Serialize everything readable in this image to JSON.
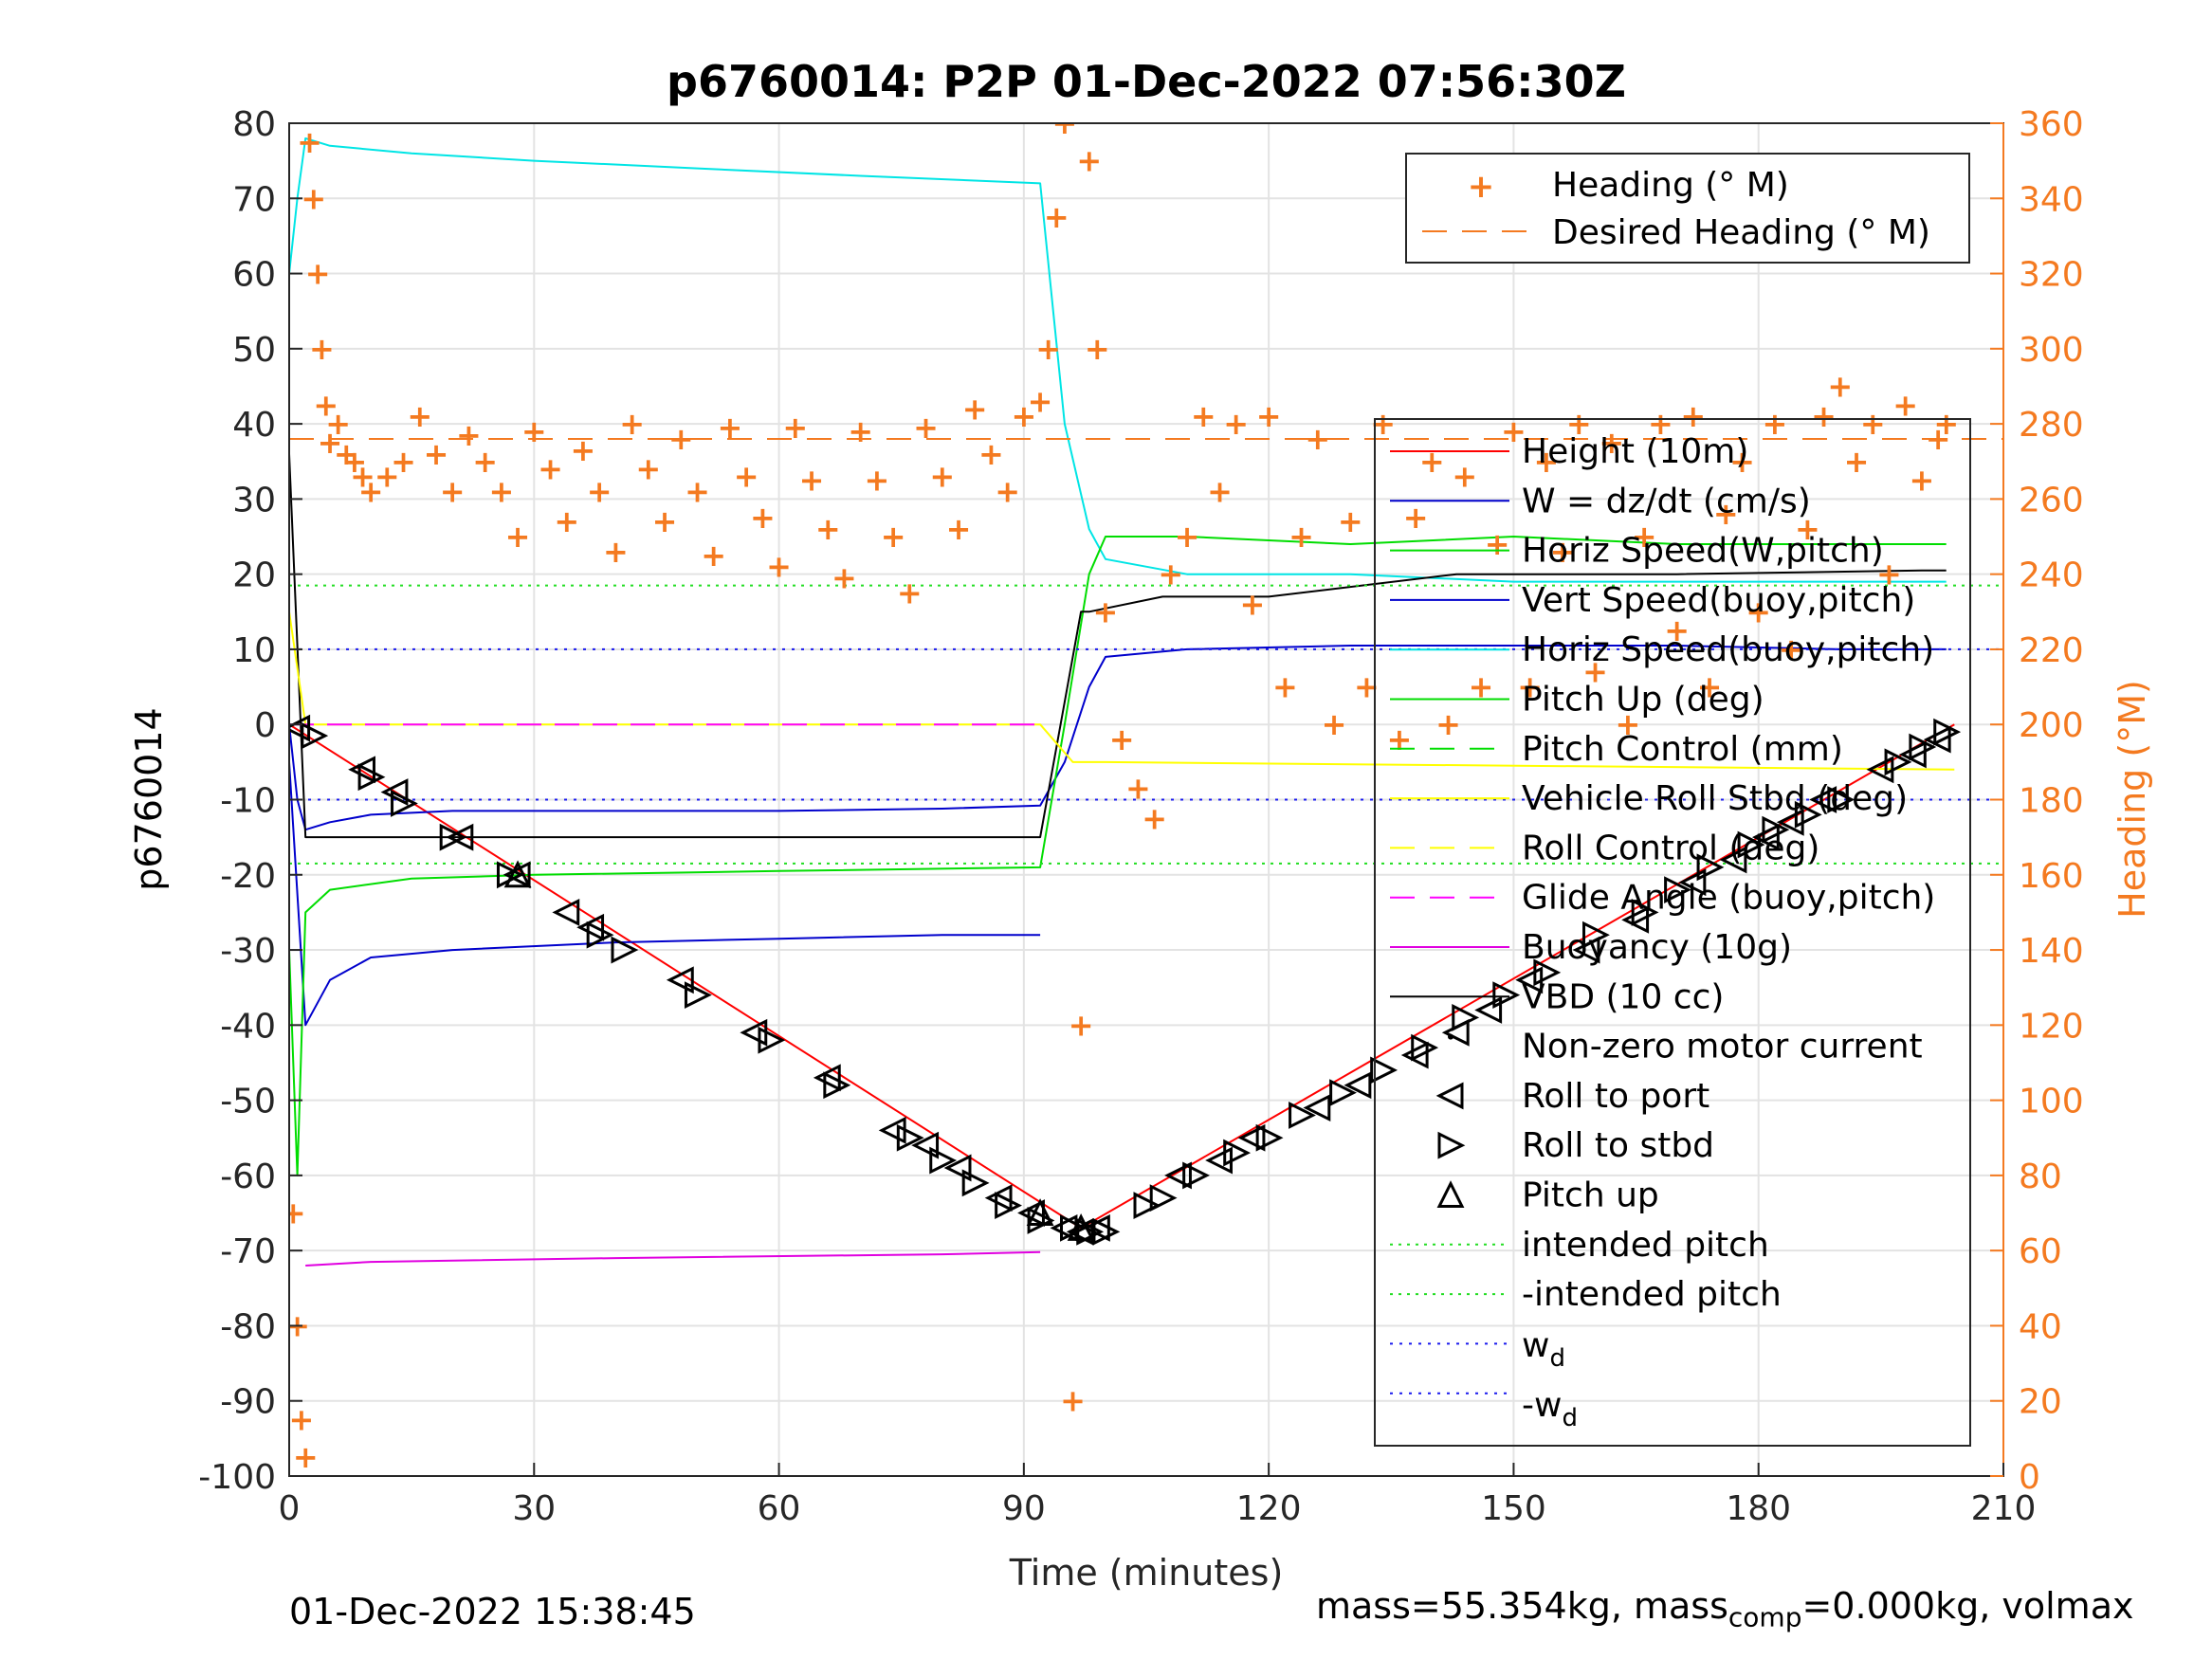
{
  "chart_data": {
    "type": "line",
    "title": "p6760014: P2P 01-Dec-2022 07:56:30Z",
    "xlabel": "Time (minutes)",
    "ylabel": "p6760014",
    "ylabel_right": "Heading (°M)",
    "xlim": [
      0,
      210
    ],
    "ylim": [
      -100,
      80
    ],
    "ylim_right": [
      0,
      360
    ],
    "x_ticks": [
      "0",
      "30",
      "60",
      "90",
      "120",
      "150",
      "180",
      "210"
    ],
    "y_ticks": [
      "80",
      "70",
      "60",
      "50",
      "40",
      "30",
      "20",
      "10",
      "0",
      "-10",
      "-20",
      "-30",
      "-40",
      "-50",
      "-60",
      "-70",
      "-80",
      "-90",
      "-100"
    ],
    "y_ticks_right": [
      "360",
      "340",
      "320",
      "300",
      "280",
      "260",
      "240",
      "220",
      "200",
      "180",
      "160",
      "140",
      "120",
      "100",
      "80",
      "60",
      "40",
      "20",
      "0"
    ],
    "grid": true,
    "legend_heading": {
      "placement": "top-right",
      "entries": [
        "Heading (° M)",
        "Desired Heading (° M)"
      ]
    },
    "legend_main": {
      "placement": "right",
      "entries": [
        "Height (10m)",
        "W = dz/dt (cm/s)",
        "Horiz Speed(W,pitch)",
        "Vert Speed(buoy,pitch)",
        "Horiz Speed(buoy,pitch)",
        "Pitch Up (deg)",
        "Pitch Control (mm)",
        "Vehicle Roll Stbd (deg)",
        "Roll Control (deg)",
        "Glide Angle (buoy,pitch)",
        "Buoyancy (10g)",
        "VBD (10 cc)",
        "Non-zero motor current",
        "Roll to port",
        "Roll to stbd",
        "Pitch up",
        "intended pitch",
        "-intended pitch"
      ],
      "subscript_entries": [
        {
          "base": "w",
          "sub": "d"
        },
        {
          "prefix": "-",
          "base": "w",
          "sub": "d"
        }
      ]
    },
    "colors": {
      "height": "#ff0000",
      "w": "#0000cc",
      "horiz_speed": "#00e5e5",
      "pitch": "#00dd00",
      "roll": "#ffff00",
      "glide": "#ff00ff",
      "buoyancy": "#e000e0",
      "vbd": "#000000",
      "heading": "#f47a20",
      "intended_pitch": "#22dd22",
      "wd": "#1a1aee"
    },
    "series": [
      {
        "name": "Height (10m)",
        "x": [
          0,
          97,
          204
        ],
        "y": [
          0,
          -67,
          0
        ]
      },
      {
        "name": "W = dz/dt (cm/s)",
        "x": [
          0,
          1,
          2,
          5,
          10,
          20,
          40,
          60,
          80,
          92,
          95,
          98,
          100,
          110,
          130,
          150,
          170,
          190,
          203
        ],
        "y": [
          0,
          -10,
          -14,
          -13,
          -12,
          -11.5,
          -11.5,
          -11.5,
          -11.2,
          -10.8,
          -5,
          5,
          9,
          10,
          10.5,
          10.5,
          10.5,
          10,
          10
        ]
      },
      {
        "name": "Horiz Speed(W,pitch)",
        "x": [
          0,
          1,
          2,
          5,
          15,
          30,
          50,
          70,
          92,
          95,
          98,
          100,
          110,
          130,
          150,
          170,
          190,
          203
        ],
        "y": [
          60,
          70,
          78,
          77,
          76,
          75,
          74,
          73,
          72,
          40,
          26,
          22,
          20,
          20,
          19,
          19,
          19,
          19
        ]
      },
      {
        "name": "Horiz Speed(buoy,pitch)",
        "x": [
          0,
          2,
          5,
          10,
          20,
          40,
          60,
          80,
          92
        ],
        "y": [
          -5,
          -40,
          -34,
          -31,
          -30,
          -29,
          -28.5,
          -28,
          -28
        ]
      },
      {
        "name": "Pitch Up (deg)",
        "x": [
          0,
          1,
          2,
          5,
          15,
          30,
          60,
          92,
          95,
          98,
          100,
          110,
          130,
          150,
          170,
          190,
          203
        ],
        "y": [
          -30,
          -60,
          -25,
          -22,
          -20.5,
          -20,
          -19.5,
          -19,
          0,
          20,
          25,
          25,
          24,
          25,
          24,
          24,
          24
        ]
      },
      {
        "name": "VBD (10 cc)",
        "x": [
          0,
          2,
          92,
          97,
          98,
          107,
          120,
          143,
          170,
          200,
          203
        ],
        "y": [
          36,
          -15,
          -15,
          15,
          15,
          17,
          17,
          20,
          20,
          20.5,
          20.5
        ]
      },
      {
        "name": "Buoyancy (10g)",
        "x": [
          2,
          10,
          40,
          80,
          92
        ],
        "y": [
          -72,
          -71.5,
          -71,
          -70.5,
          -70.2
        ]
      },
      {
        "name": "Vehicle Roll Stbd (deg)",
        "x": [
          0,
          2,
          4,
          10,
          50,
          92,
          96,
          100,
          204
        ],
        "y": [
          15,
          0,
          0,
          0,
          0,
          0,
          -5,
          -5,
          -6
        ]
      },
      {
        "name": "intended pitch",
        "x": [
          0,
          210
        ],
        "y": [
          18.5,
          18.5
        ]
      },
      {
        "name": "-intended pitch",
        "x": [
          0,
          210
        ],
        "y": [
          -18.5,
          -18.5
        ]
      },
      {
        "name": "w_d",
        "x": [
          0,
          210
        ],
        "y": [
          10,
          10
        ]
      },
      {
        "name": "-w_d",
        "x": [
          0,
          210
        ],
        "y": [
          -10,
          -10
        ]
      },
      {
        "name": "Glide Angle (buoy,pitch)",
        "x": [
          0,
          92
        ],
        "y": [
          0,
          0
        ]
      },
      {
        "name": "Desired Heading (° M)",
        "axis": "right",
        "x": [
          0,
          210
        ],
        "y": [
          276,
          276
        ]
      }
    ],
    "heading_points": {
      "axis": "right",
      "x": [
        0.5,
        1,
        1.5,
        2,
        2.5,
        3,
        3.5,
        4,
        4.5,
        5,
        6,
        7,
        8,
        9,
        10,
        12,
        14,
        16,
        18,
        20,
        22,
        24,
        26,
        28,
        30,
        32,
        34,
        36,
        38,
        40,
        42,
        44,
        46,
        48,
        50,
        52,
        54,
        56,
        58,
        60,
        62,
        64,
        66,
        68,
        70,
        72,
        74,
        76,
        78,
        80,
        82,
        84,
        86,
        88,
        90,
        92,
        93,
        94,
        95,
        96,
        97,
        98,
        99,
        100,
        102,
        104,
        106,
        108,
        110,
        112,
        114,
        116,
        118,
        120,
        122,
        124,
        126,
        128,
        130,
        132,
        134,
        136,
        138,
        140,
        142,
        144,
        146,
        148,
        150,
        152,
        154,
        156,
        158,
        160,
        162,
        164,
        166,
        168,
        170,
        172,
        174,
        176,
        178,
        180,
        182,
        184,
        186,
        188,
        190,
        192,
        194,
        196,
        198,
        200,
        202,
        203
      ],
      "y": [
        70,
        40,
        15,
        5,
        355,
        340,
        320,
        300,
        285,
        275,
        280,
        272,
        270,
        266,
        262,
        266,
        270,
        282,
        272,
        262,
        277,
        270,
        262,
        250,
        278,
        268,
        254,
        273,
        262,
        246,
        280,
        268,
        254,
        276,
        262,
        245,
        279,
        266,
        255,
        242,
        279,
        265,
        252,
        239,
        278,
        265,
        250,
        235,
        279,
        266,
        252,
        284,
        272,
        262,
        282,
        286,
        300,
        335,
        360,
        20,
        120,
        350,
        300,
        230,
        196,
        183,
        175,
        240,
        250,
        282,
        262,
        280,
        232,
        282,
        210,
        250,
        276,
        200,
        254,
        210,
        280,
        196,
        255,
        270,
        200,
        266,
        210,
        248,
        278,
        210,
        270,
        246,
        280,
        214,
        275,
        200,
        250,
        280,
        225,
        282,
        210,
        256,
        270,
        230,
        280,
        220,
        252,
        282,
        290,
        270,
        280,
        240,
        285,
        265,
        276,
        280
      ]
    },
    "markers": {
      "roll_to_port": {
        "x": [
          1,
          9,
          13,
          21,
          28,
          34,
          37,
          48,
          57,
          66,
          74,
          78,
          82,
          87,
          91,
          95,
          97,
          99,
          109,
          114,
          118,
          126,
          131,
          138,
          143,
          147,
          152,
          159,
          165,
          172,
          177,
          181,
          184,
          188,
          195,
          199,
          202
        ],
        "y": [
          -0.5,
          -6,
          -9,
          -15,
          -20,
          -25,
          -27,
          -34,
          -41,
          -47,
          -54,
          -56,
          -59,
          -63,
          -65,
          -67,
          -67.5,
          -67,
          -60,
          -58,
          -55,
          -51,
          -48,
          -44,
          -41,
          -38,
          -34,
          -30,
          -26,
          -21,
          -18,
          -15,
          -13,
          -10,
          -6,
          -4,
          -2
        ]
      },
      "roll_to_stbd": {
        "x": [
          3,
          10,
          14,
          20,
          27,
          38,
          41,
          50,
          59,
          67,
          76,
          80,
          84,
          88,
          92,
          96,
          98,
          100,
          105,
          107,
          111,
          116,
          120,
          124,
          129,
          134,
          139,
          144,
          149,
          154,
          160,
          166,
          170,
          174,
          179,
          182,
          186,
          190,
          197,
          200,
          203
        ],
        "y": [
          -1.5,
          -7,
          -10.5,
          -15,
          -20,
          -28,
          -30,
          -36,
          -42,
          -48,
          -55,
          -58,
          -61,
          -64,
          -66,
          -67,
          -67.5,
          -67.5,
          -64,
          -63,
          -60,
          -57,
          -55,
          -52,
          -49,
          -46,
          -43,
          -39,
          -36,
          -33,
          -28,
          -25,
          -22,
          -19,
          -16,
          -14,
          -12,
          -10,
          -5,
          -3,
          -1
        ]
      },
      "pitch_up": {
        "x": [
          28,
          92,
          97
        ],
        "y": [
          -20,
          -65,
          -67
        ]
      }
    },
    "footer_left": "01-Dec-2022 15:38:45",
    "footer_right": {
      "mass": "mass=55.354kg, mass",
      "sub": "comp",
      "rest": "=0.000kg, volmax"
    }
  }
}
